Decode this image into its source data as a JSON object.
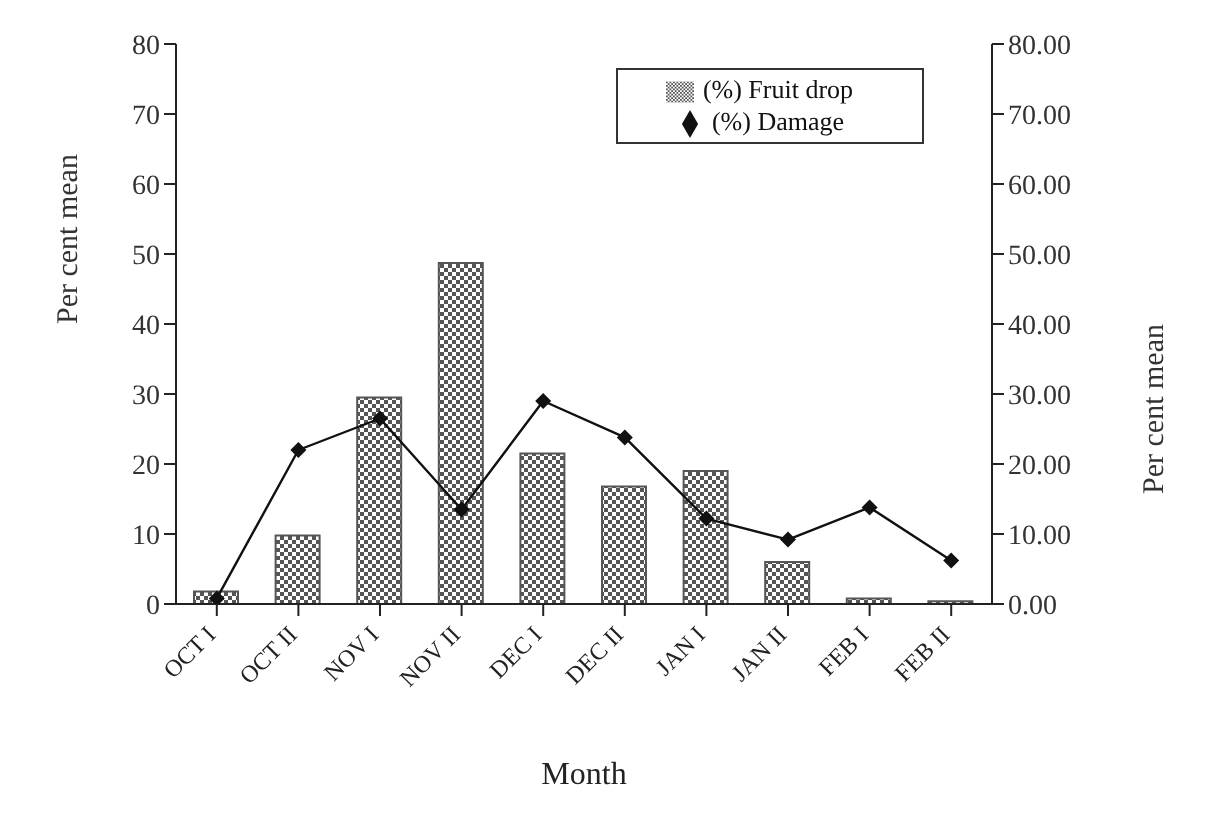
{
  "chart_data": {
    "type": "bar",
    "xlabel": "Month",
    "ylabel": "Per cent mean",
    "y2label": "Per cent mean",
    "categories": [
      "OCT I",
      "OCT II",
      "NOV I",
      "NOV II",
      "DEC I",
      "DEC II",
      "JAN I",
      "JAN II",
      "FEB I",
      "FEB II"
    ],
    "series": [
      {
        "name": "(%) Fruit drop",
        "color": "#555555",
        "values": [
          1.8,
          9.8,
          29.5,
          48.7,
          21.5,
          16.8,
          19,
          6,
          0.8,
          0.4
        ]
      },
      {
        "name": "(%) Damage",
        "type": "line",
        "axis": "y2",
        "color": "#111111",
        "marker": "diamond",
        "values": [
          0.8,
          22,
          26.5,
          13.5,
          29,
          23.8,
          12.2,
          9.2,
          13.8,
          6.2
        ]
      }
    ],
    "ylim": [
      0,
      80
    ],
    "yticks": [
      0,
      10,
      20,
      30,
      40,
      50,
      60,
      70,
      80
    ],
    "y2lim": [
      0,
      80
    ],
    "y2ticks": [
      {
        "value": 0,
        "label": "0.00"
      },
      {
        "value": 10,
        "label": "10.00"
      },
      {
        "value": 20,
        "label": "20.00"
      },
      {
        "value": 30,
        "label": "30.00"
      },
      {
        "value": 40,
        "label": "40.00"
      },
      {
        "value": 50,
        "label": "50.00"
      },
      {
        "value": 60,
        "label": "60.00"
      },
      {
        "value": 70,
        "label": "70.00"
      },
      {
        "value": 80,
        "label": "80.00"
      }
    ],
    "legend": "top right",
    "grid": false
  }
}
